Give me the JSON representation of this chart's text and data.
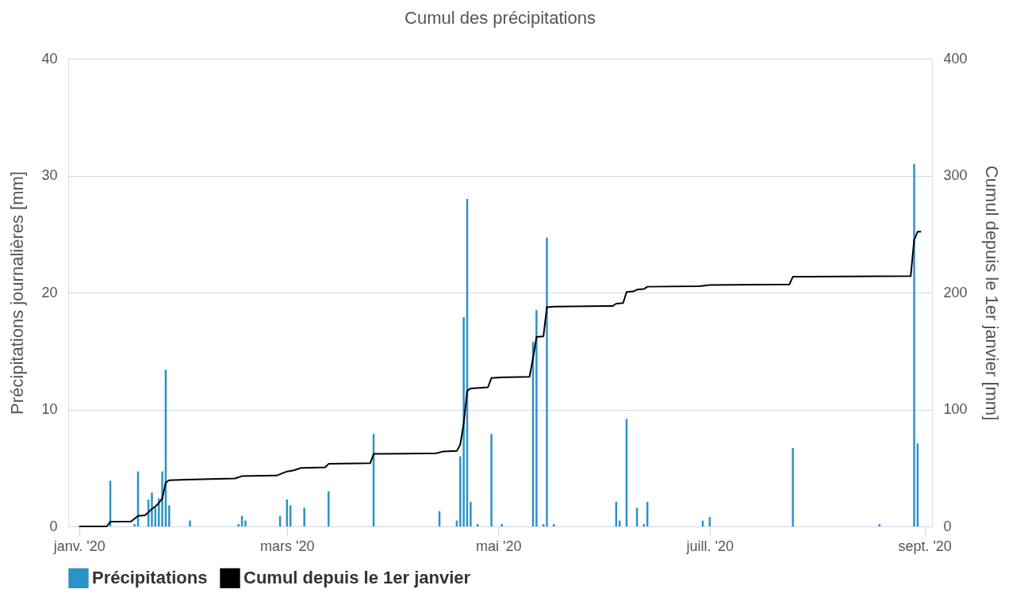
{
  "chart_data": {
    "type": "bar",
    "title": "Cumul des précipitations",
    "ylabel": "Précipitations journalières [mm]",
    "y2label": "Cumul depuis le 1er janvier [mm]",
    "xlim": [
      "2019-12-30",
      "2020-09-02"
    ],
    "xticks": [
      {
        "value": "2020-01-01",
        "label": "janv. '20"
      },
      {
        "value": "2020-03-01",
        "label": "mars '20"
      },
      {
        "value": "2020-05-01",
        "label": "mai '20"
      },
      {
        "value": "2020-07-01",
        "label": "juill. '20"
      },
      {
        "value": "2020-09-01",
        "label": "sept. '20"
      }
    ],
    "ylim": [
      0,
      40
    ],
    "yticks": [
      0,
      10,
      20,
      30,
      40
    ],
    "y2lim": [
      0,
      400
    ],
    "y2ticks": [
      0,
      100,
      200,
      300,
      400
    ],
    "grid": "y",
    "legend": "bottom",
    "series": [
      {
        "name": "Précipitations",
        "color": "#2b93c5",
        "x": [
          "2020-01-10",
          "2020-01-17",
          "2020-01-18",
          "2020-01-21",
          "2020-01-22",
          "2020-01-23",
          "2020-01-24",
          "2020-01-25",
          "2020-01-26",
          "2020-01-27",
          "2020-02-02",
          "2020-02-16",
          "2020-02-17",
          "2020-02-18",
          "2020-02-28",
          "2020-03-01",
          "2020-03-02",
          "2020-03-06",
          "2020-03-13",
          "2020-03-26",
          "2020-04-14",
          "2020-04-19",
          "2020-04-20",
          "2020-04-21",
          "2020-04-22",
          "2020-04-23",
          "2020-04-25",
          "2020-04-29",
          "2020-05-02",
          "2020-05-11",
          "2020-05-12",
          "2020-05-14",
          "2020-05-15",
          "2020-05-17",
          "2020-06-04",
          "2020-06-05",
          "2020-06-07",
          "2020-06-10",
          "2020-06-12",
          "2020-06-13",
          "2020-06-29",
          "2020-07-01",
          "2020-07-25",
          "2020-08-19",
          "2020-08-29",
          "2020-08-30"
        ],
        "values": [
          3.9,
          0.2,
          4.7,
          2.3,
          2.9,
          1.6,
          2.4,
          4.7,
          13.4,
          1.8,
          0.5,
          0.2,
          0.9,
          0.5,
          0.9,
          2.3,
          1.8,
          1.6,
          3.0,
          7.9,
          1.3,
          0.5,
          6.0,
          17.9,
          28.0,
          2.1,
          0.2,
          7.9,
          0.2,
          15.8,
          18.5,
          0.2,
          24.7,
          0.2,
          2.1,
          0.5,
          9.2,
          1.6,
          0.2,
          2.1,
          0.5,
          0.8,
          6.7,
          0.2,
          31.0,
          7.1
        ]
      },
      {
        "name": "Cumul depuis le 1er janvier",
        "type": "line",
        "axis": "y2",
        "color": "#000000",
        "line_style": "solid",
        "marker": "none",
        "x": [
          "2020-01-01",
          "2020-01-09",
          "2020-01-10",
          "2020-01-16",
          "2020-01-18",
          "2020-01-20",
          "2020-01-21",
          "2020-01-22",
          "2020-01-23",
          "2020-01-24",
          "2020-01-25",
          "2020-01-26",
          "2020-01-27",
          "2020-02-01",
          "2020-02-15",
          "2020-02-17",
          "2020-02-27",
          "2020-03-01",
          "2020-03-03",
          "2020-03-05",
          "2020-03-12",
          "2020-03-13",
          "2020-03-25",
          "2020-03-26",
          "2020-04-13",
          "2020-04-15",
          "2020-04-19",
          "2020-04-20",
          "2020-04-21",
          "2020-04-22",
          "2020-04-23",
          "2020-04-28",
          "2020-04-29",
          "2020-05-02",
          "2020-05-10",
          "2020-05-11",
          "2020-05-12",
          "2020-05-14",
          "2020-05-15",
          "2020-05-17",
          "2020-06-03",
          "2020-06-04",
          "2020-06-06",
          "2020-06-07",
          "2020-06-09",
          "2020-06-10",
          "2020-06-12",
          "2020-06-13",
          "2020-06-28",
          "2020-07-01",
          "2020-07-24",
          "2020-07-25",
          "2020-08-28",
          "2020-08-29",
          "2020-08-30",
          "2020-08-31"
        ],
        "values": [
          0,
          0,
          4,
          4.2,
          9,
          9.5,
          12,
          15,
          17,
          20,
          24,
          37.5,
          39.5,
          40,
          41,
          43,
          43.5,
          47,
          48,
          50,
          50.5,
          53.5,
          54,
          62,
          62.5,
          64,
          64.5,
          70,
          88,
          116,
          118,
          119,
          127,
          127.5,
          128,
          144,
          162,
          162.5,
          187.5,
          188,
          188.5,
          190.5,
          191,
          200.5,
          201,
          202.5,
          203,
          205,
          205.5,
          206.5,
          207,
          213.5,
          214,
          245,
          252,
          252
        ]
      }
    ]
  }
}
